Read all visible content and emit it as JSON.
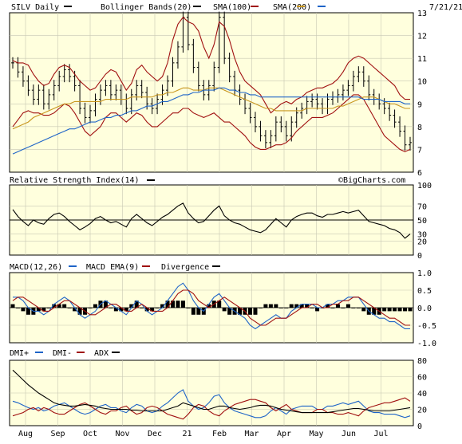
{
  "chart_data": [
    {
      "type": "line",
      "panel": "price",
      "title": "SILV Daily",
      "date_label": "7/21/21",
      "legend": [
        {
          "label": "SILV Daily",
          "color": "#000000"
        },
        {
          "label": "Bollinger Bands(20)",
          "color": "#000000"
        },
        {
          "label": "SMA(100)",
          "color": "#a01010"
        },
        {
          "label": "SMA(200)",
          "color": "#c8961e"
        },
        {
          "label": "",
          "color": "#1e64c8"
        }
      ],
      "ylim": [
        6,
        13
      ],
      "y_ticks": [
        "13",
        "12",
        "11",
        "10",
        "9",
        "8",
        "7",
        "6"
      ],
      "x_ticks": [
        "Aug",
        "Sep",
        "Oct",
        "Nov",
        "Dec",
        "21",
        "Feb",
        "Mar",
        "Apr",
        "May",
        "Jun",
        "Jul"
      ],
      "series": [
        {
          "name": "SILV Daily",
          "values": [
            10.8,
            10.4,
            10.0,
            9.6,
            9.2,
            9.6,
            9.0,
            9.4,
            9.8,
            10.2,
            10.5,
            10.2,
            9.8,
            8.8,
            8.4,
            8.7,
            9.2,
            9.6,
            9.8,
            9.4,
            9.6,
            9.2,
            8.8,
            9.4,
            9.8,
            9.5,
            9.0,
            8.8,
            9.2,
            9.6,
            10.0,
            10.8,
            11.5,
            12.8,
            11.6,
            10.6,
            9.8,
            9.4,
            9.8,
            10.6,
            12.8,
            11.0,
            10.2,
            9.6,
            9.2,
            8.8,
            8.4,
            8.0,
            7.6,
            7.3,
            7.6,
            8.2,
            8.0,
            7.6,
            8.2,
            8.6,
            8.8,
            9.1,
            9.2,
            9.0,
            8.8,
            9.2,
            9.3,
            9.4,
            9.6,
            9.8,
            10.2,
            10.4,
            10.0,
            9.4,
            9.2,
            9.0,
            8.8,
            8.5,
            8.2,
            7.8,
            7.2,
            7.3
          ]
        },
        {
          "name": "BB Upper",
          "values": [
            10.9,
            10.8,
            10.8,
            10.7,
            10.3,
            10.0,
            9.8,
            9.9,
            10.3,
            10.6,
            10.7,
            10.6,
            10.3,
            10.0,
            9.8,
            9.6,
            9.7,
            10.0,
            10.3,
            10.5,
            10.4,
            10.0,
            9.6,
            9.9,
            10.5,
            10.7,
            10.4,
            10.2,
            10.0,
            10.2,
            10.8,
            11.8,
            12.5,
            12.8,
            12.6,
            12.5,
            12.2,
            11.5,
            11.0,
            11.6,
            12.6,
            12.4,
            11.8,
            11.0,
            10.4,
            10.0,
            9.8,
            9.6,
            9.4,
            9.0,
            8.6,
            8.8,
            9.0,
            9.1,
            9.0,
            9.2,
            9.3,
            9.5,
            9.6,
            9.7,
            9.7,
            9.8,
            9.9,
            10.1,
            10.4,
            10.8,
            11.0,
            11.1,
            11.0,
            10.8,
            10.6,
            10.4,
            10.2,
            10.0,
            9.8,
            9.4,
            9.2,
            9.2
          ]
        },
        {
          "name": "BB Lower",
          "values": [
            8.0,
            8.3,
            8.6,
            8.7,
            8.6,
            8.6,
            8.5,
            8.5,
            8.6,
            8.8,
            9.0,
            8.9,
            8.6,
            8.2,
            7.8,
            7.6,
            7.8,
            8.0,
            8.4,
            8.6,
            8.6,
            8.4,
            8.2,
            8.4,
            8.6,
            8.5,
            8.2,
            8.0,
            8.0,
            8.2,
            8.4,
            8.6,
            8.6,
            8.8,
            8.8,
            8.6,
            8.5,
            8.4,
            8.5,
            8.6,
            8.4,
            8.2,
            8.2,
            8.0,
            7.8,
            7.6,
            7.3,
            7.1,
            7.0,
            7.0,
            7.1,
            7.2,
            7.2,
            7.3,
            7.5,
            7.8,
            8.0,
            8.2,
            8.4,
            8.4,
            8.4,
            8.5,
            8.6,
            8.8,
            9.0,
            9.2,
            9.4,
            9.4,
            9.2,
            8.8,
            8.4,
            8.0,
            7.6,
            7.4,
            7.2,
            7.0,
            6.9,
            7.0
          ]
        },
        {
          "name": "SMA(100)",
          "values": [
            7.9,
            8.0,
            8.1,
            8.2,
            8.4,
            8.5,
            8.6,
            8.7,
            8.8,
            8.9,
            9.0,
            9.0,
            9.1,
            9.1,
            9.1,
            9.1,
            9.1,
            9.1,
            9.2,
            9.2,
            9.2,
            9.2,
            9.2,
            9.3,
            9.3,
            9.3,
            9.3,
            9.3,
            9.4,
            9.4,
            9.5,
            9.5,
            9.6,
            9.7,
            9.7,
            9.6,
            9.6,
            9.6,
            9.7,
            9.7,
            9.7,
            9.6,
            9.5,
            9.4,
            9.3,
            9.2,
            9.1,
            9.0,
            8.9,
            8.8,
            8.8,
            8.7,
            8.7,
            8.7,
            8.7,
            8.7,
            8.7,
            8.8,
            8.8,
            8.8,
            8.8,
            8.8,
            8.8,
            8.9,
            8.9,
            9.0,
            9.1,
            9.2,
            9.3,
            9.3,
            9.3,
            9.2,
            9.1,
            9.0,
            9.0,
            8.9,
            8.8,
            8.8
          ]
        },
        {
          "name": "SMA(200)",
          "values": [
            6.8,
            6.9,
            7.0,
            7.1,
            7.2,
            7.3,
            7.4,
            7.5,
            7.6,
            7.7,
            7.8,
            7.9,
            7.9,
            8.0,
            8.1,
            8.2,
            8.2,
            8.3,
            8.4,
            8.4,
            8.5,
            8.5,
            8.6,
            8.7,
            8.7,
            8.8,
            8.9,
            8.9,
            9.0,
            9.1,
            9.1,
            9.2,
            9.3,
            9.4,
            9.4,
            9.5,
            9.5,
            9.6,
            9.6,
            9.6,
            9.7,
            9.7,
            9.6,
            9.6,
            9.5,
            9.5,
            9.4,
            9.4,
            9.3,
            9.3,
            9.3,
            9.3,
            9.3,
            9.3,
            9.3,
            9.3,
            9.3,
            9.3,
            9.3,
            9.3,
            9.3,
            9.3,
            9.3,
            9.3,
            9.3,
            9.3,
            9.3,
            9.3,
            9.2,
            9.2,
            9.2,
            9.2,
            9.1,
            9.1,
            9.1,
            9.1,
            9.0,
            9.0
          ]
        }
      ]
    },
    {
      "type": "line",
      "panel": "rsi",
      "title": "Relative Strength Index(14)",
      "watermark": "©BigCharts.com",
      "ylim": [
        0,
        100
      ],
      "y_ticks": [
        "100",
        "70",
        "50",
        "30",
        "20",
        "0"
      ],
      "series": [
        {
          "name": "RSI",
          "values": [
            65,
            55,
            48,
            42,
            50,
            46,
            44,
            52,
            58,
            60,
            55,
            48,
            42,
            36,
            40,
            45,
            52,
            55,
            50,
            46,
            48,
            44,
            40,
            52,
            58,
            52,
            46,
            42,
            48,
            54,
            58,
            64,
            70,
            74,
            60,
            52,
            46,
            48,
            56,
            64,
            70,
            56,
            50,
            46,
            44,
            40,
            36,
            34,
            32,
            36,
            44,
            52,
            46,
            40,
            50,
            55,
            58,
            60,
            60,
            56,
            54,
            58,
            58,
            60,
            62,
            60,
            62,
            64,
            56,
            48,
            46,
            44,
            42,
            38,
            36,
            32,
            24,
            30
          ]
        }
      ]
    },
    {
      "type": "line",
      "panel": "macd",
      "title": "MACD(12,26)",
      "legend": [
        {
          "label": "MACD(12,26)",
          "color": "#1e64c8"
        },
        {
          "label": "MACD EMA(9)",
          "color": "#a01010"
        },
        {
          "label": "Divergence",
          "color": "#000000"
        }
      ],
      "ylim": [
        -1.0,
        1.0
      ],
      "y_ticks": [
        "1.0",
        "0.5",
        "0.0",
        "-0.5",
        "-1.0"
      ],
      "series": [
        {
          "name": "MACD(12,26)",
          "values": [
            0.3,
            0.3,
            0.2,
            0.0,
            -0.1,
            -0.1,
            -0.2,
            -0.1,
            0.1,
            0.2,
            0.3,
            0.2,
            0.0,
            -0.2,
            -0.3,
            -0.2,
            -0.1,
            0.1,
            0.2,
            0.1,
            0.0,
            -0.1,
            -0.2,
            0.0,
            0.2,
            0.1,
            -0.1,
            -0.2,
            -0.1,
            0.0,
            0.2,
            0.4,
            0.6,
            0.7,
            0.5,
            0.2,
            0.0,
            -0.1,
            0.1,
            0.3,
            0.4,
            0.2,
            0.0,
            -0.1,
            -0.2,
            -0.3,
            -0.5,
            -0.6,
            -0.5,
            -0.4,
            -0.3,
            -0.2,
            -0.3,
            -0.3,
            -0.1,
            0.0,
            0.1,
            0.1,
            0.1,
            0.0,
            0.0,
            0.1,
            0.1,
            0.2,
            0.2,
            0.3,
            0.3,
            0.3,
            0.1,
            -0.1,
            -0.2,
            -0.3,
            -0.3,
            -0.4,
            -0.4,
            -0.5,
            -0.6,
            -0.6
          ]
        },
        {
          "name": "MACD EMA(9)",
          "values": [
            0.2,
            0.3,
            0.3,
            0.2,
            0.1,
            0.0,
            -0.1,
            -0.1,
            0.0,
            0.1,
            0.2,
            0.2,
            0.1,
            0.0,
            -0.1,
            -0.2,
            -0.2,
            -0.1,
            0.0,
            0.1,
            0.1,
            0.0,
            -0.1,
            -0.1,
            0.0,
            0.1,
            0.0,
            -0.1,
            -0.1,
            -0.1,
            0.0,
            0.2,
            0.4,
            0.5,
            0.5,
            0.4,
            0.2,
            0.1,
            0.0,
            0.1,
            0.2,
            0.3,
            0.2,
            0.1,
            0.0,
            -0.1,
            -0.3,
            -0.4,
            -0.5,
            -0.5,
            -0.4,
            -0.3,
            -0.3,
            -0.3,
            -0.2,
            -0.1,
            0.0,
            0.0,
            0.1,
            0.1,
            0.0,
            0.0,
            0.1,
            0.1,
            0.2,
            0.2,
            0.3,
            0.3,
            0.2,
            0.1,
            0.0,
            -0.1,
            -0.2,
            -0.3,
            -0.3,
            -0.4,
            -0.5,
            -0.5
          ]
        }
      ]
    },
    {
      "type": "line",
      "panel": "dmi",
      "title": "DMI+",
      "legend": [
        {
          "label": "DMI+",
          "color": "#1e64c8"
        },
        {
          "label": "DMI-",
          "color": "#a01010"
        },
        {
          "label": "ADX",
          "color": "#000000"
        }
      ],
      "ylim": [
        0,
        80
      ],
      "y_ticks": [
        "80",
        "60",
        "40",
        "20",
        "0"
      ],
      "series": [
        {
          "name": "DMI+",
          "values": [
            30,
            28,
            25,
            22,
            20,
            22,
            18,
            20,
            24,
            26,
            28,
            24,
            20,
            16,
            14,
            16,
            20,
            24,
            26,
            22,
            22,
            18,
            16,
            22,
            26,
            24,
            18,
            16,
            18,
            24,
            28,
            34,
            40,
            44,
            30,
            24,
            20,
            22,
            28,
            36,
            38,
            28,
            22,
            18,
            16,
            14,
            12,
            10,
            10,
            12,
            18,
            22,
            18,
            14,
            20,
            22,
            24,
            24,
            24,
            20,
            20,
            24,
            24,
            26,
            28,
            26,
            28,
            30,
            24,
            18,
            16,
            16,
            14,
            14,
            14,
            12,
            10,
            12
          ]
        },
        {
          "name": "DMI-",
          "values": [
            12,
            14,
            16,
            20,
            22,
            18,
            22,
            20,
            16,
            14,
            14,
            18,
            22,
            26,
            28,
            24,
            20,
            16,
            14,
            18,
            18,
            22,
            24,
            18,
            14,
            16,
            22,
            24,
            22,
            18,
            14,
            12,
            10,
            8,
            14,
            22,
            26,
            24,
            18,
            14,
            12,
            18,
            22,
            26,
            28,
            30,
            32,
            32,
            30,
            28,
            22,
            18,
            22,
            26,
            20,
            18,
            16,
            16,
            16,
            20,
            20,
            16,
            16,
            14,
            14,
            16,
            14,
            12,
            18,
            22,
            24,
            26,
            28,
            28,
            30,
            32,
            34,
            30
          ]
        },
        {
          "name": "ADX",
          "values": [
            68,
            62,
            56,
            50,
            45,
            40,
            36,
            32,
            28,
            26,
            25,
            24,
            24,
            25,
            26,
            25,
            24,
            22,
            21,
            20,
            20,
            20,
            20,
            19,
            19,
            18,
            18,
            18,
            18,
            18,
            20,
            22,
            24,
            28,
            26,
            24,
            22,
            20,
            20,
            22,
            24,
            24,
            22,
            21,
            20,
            21,
            22,
            24,
            25,
            25,
            24,
            22,
            20,
            19,
            18,
            17,
            16,
            16,
            16,
            16,
            16,
            16,
            17,
            18,
            19,
            20,
            21,
            21,
            20,
            19,
            18,
            18,
            18,
            18,
            19,
            20,
            21,
            22
          ]
        }
      ]
    }
  ]
}
